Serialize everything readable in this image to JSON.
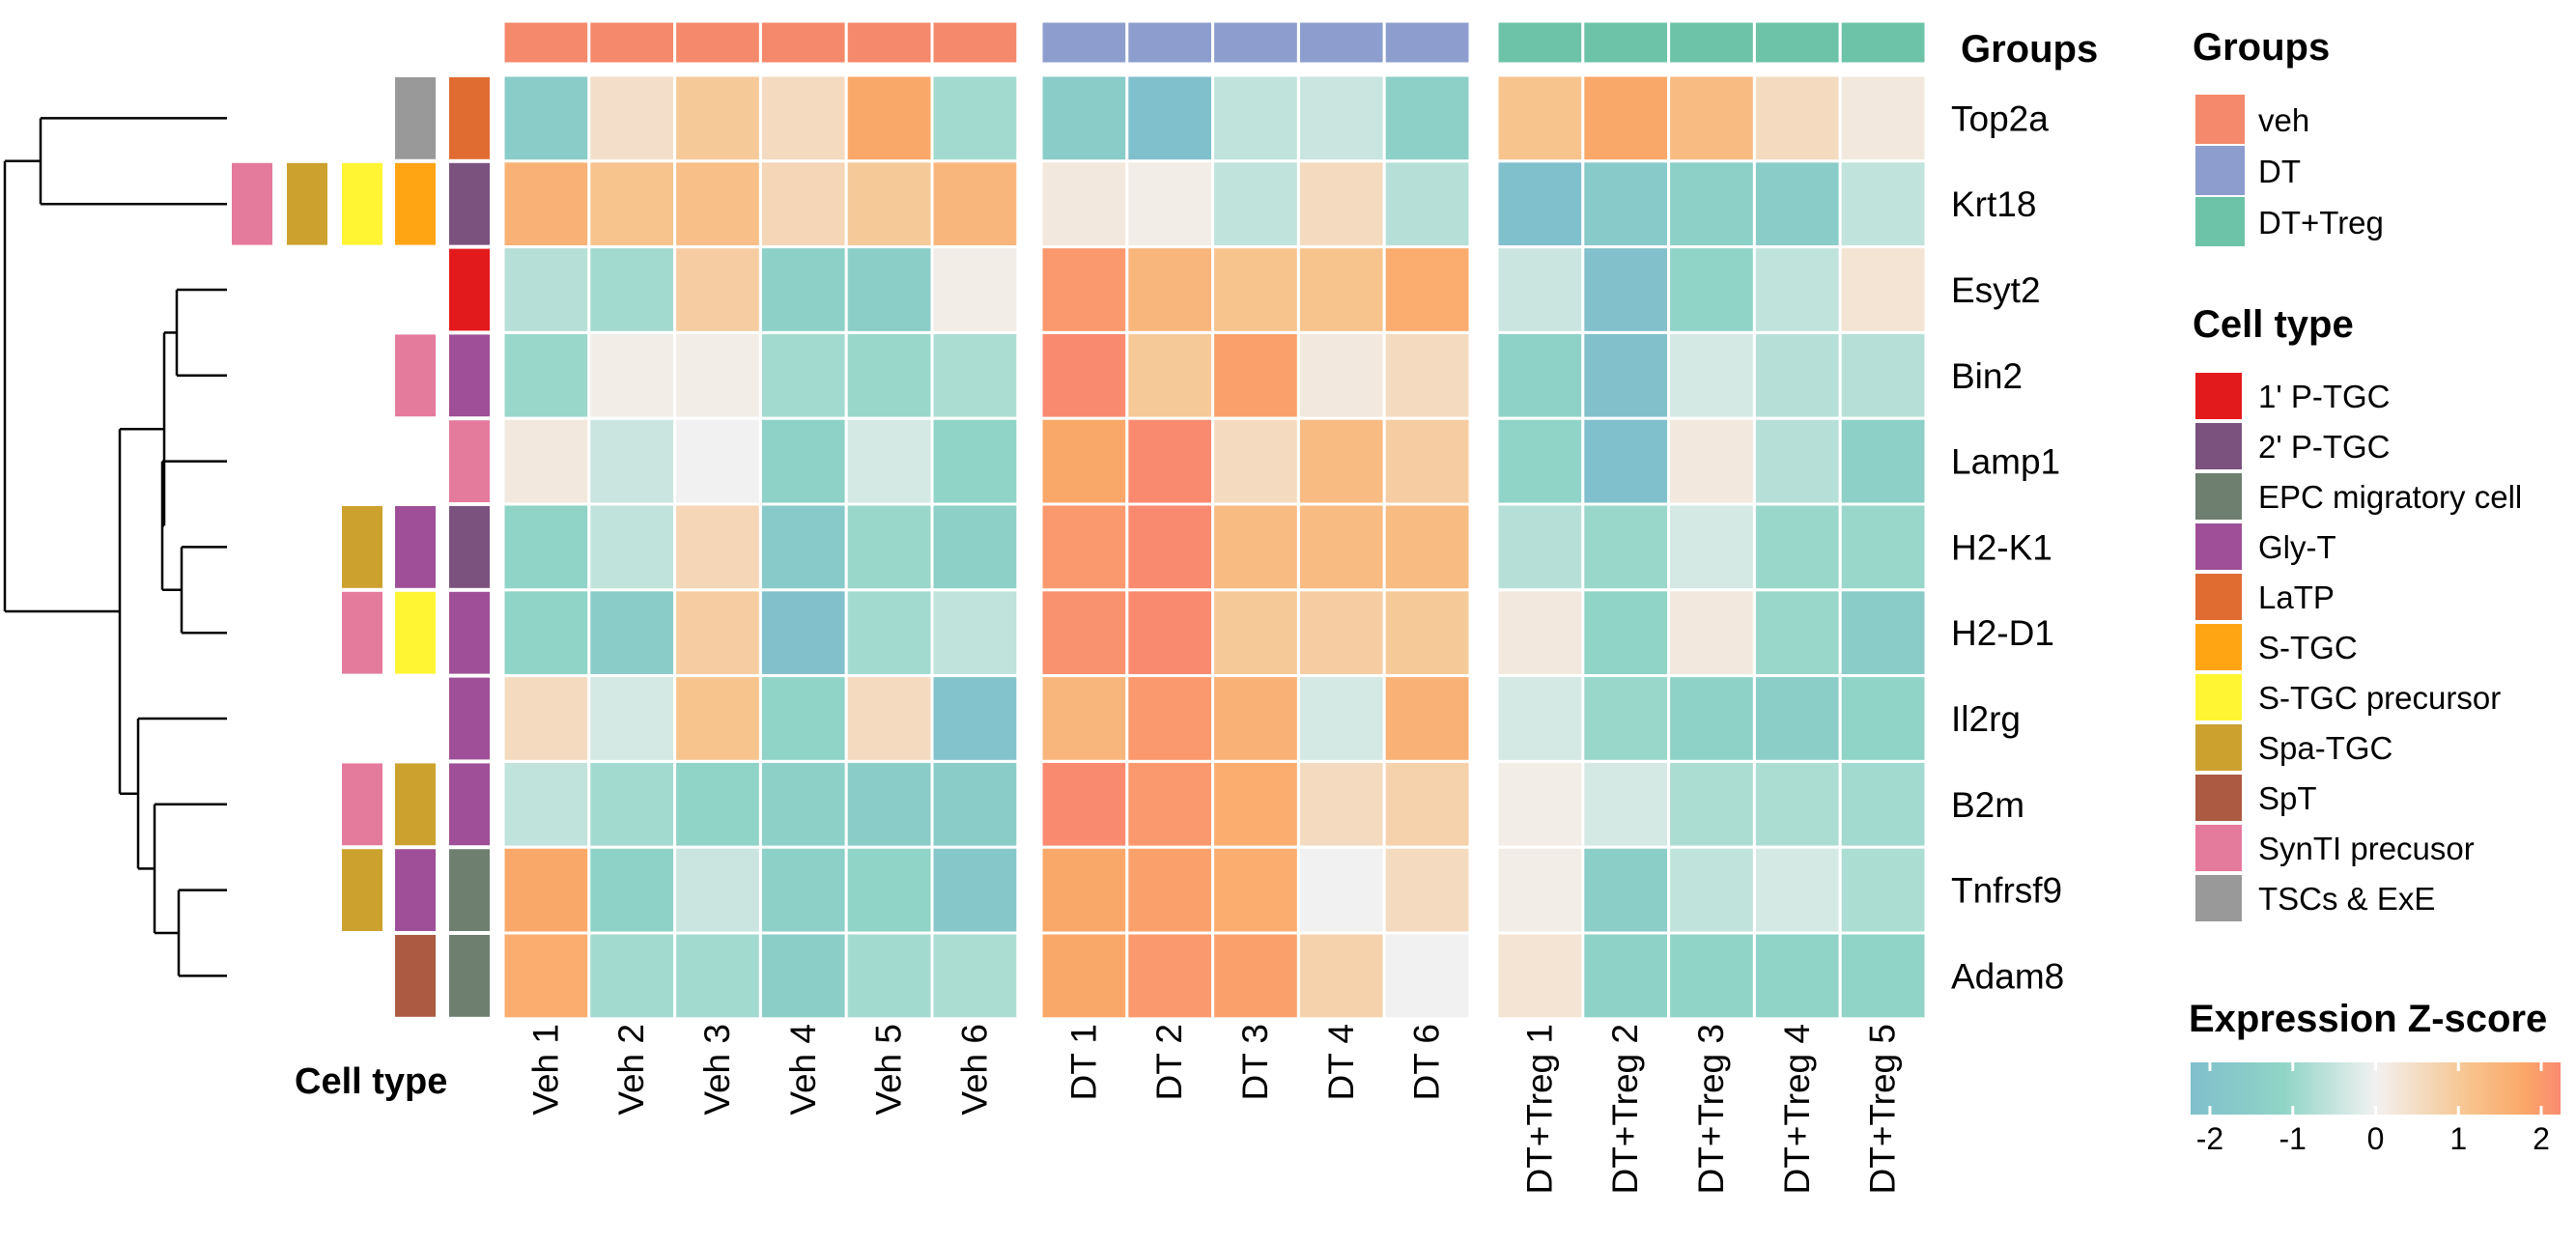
{
  "chart_data": {
    "type": "heatmap",
    "genes": [
      "Top2a",
      "Krt18",
      "Esyt2",
      "Bin2",
      "Lamp1",
      "H2-K1",
      "H2-D1",
      "Il2rg",
      "B2m",
      "Tnfrsf9",
      "Adam8"
    ],
    "groups": [
      {
        "name": "veh",
        "color": "#F4896B",
        "columns": [
          "Veh 1",
          "Veh 2",
          "Veh 3",
          "Veh 4",
          "Veh 5",
          "Veh 6"
        ]
      },
      {
        "name": "DT",
        "color": "#8D9ECE",
        "columns": [
          "DT 1",
          "DT 2",
          "DT 3",
          "DT 4",
          "DT 6"
        ]
      },
      {
        "name": "DT+Treg",
        "color": "#6CC3A7",
        "columns": [
          "DT+Treg 1",
          "DT+Treg 2",
          "DT+Treg 3",
          "DT+Treg 4",
          "DT+Treg 5"
        ]
      }
    ],
    "values": [
      [
        -1.4,
        0.4,
        0.9,
        0.5,
        1.6,
        -0.8,
        -1.4,
        -2.0,
        -0.5,
        -0.4,
        -1.2,
        1.0,
        1.6,
        1.2,
        0.5,
        0.2
      ],
      [
        1.4,
        1.0,
        1.1,
        0.6,
        0.9,
        1.3,
        0.2,
        0.1,
        -0.5,
        0.5,
        -0.6,
        -2.0,
        -1.5,
        -1.2,
        -1.4,
        -0.5
      ],
      [
        -0.6,
        -0.8,
        0.8,
        -1.2,
        -1.3,
        0.1,
        1.8,
        1.3,
        1.0,
        1.0,
        1.5,
        -0.4,
        -1.9,
        -1.0,
        -0.5,
        0.3
      ],
      [
        -0.9,
        0.1,
        0.1,
        -0.8,
        -0.9,
        -0.7,
        2.1,
        0.9,
        1.7,
        0.2,
        0.5,
        -1.1,
        -1.9,
        -0.3,
        -0.6,
        -0.6
      ],
      [
        0.2,
        -0.4,
        0.0,
        -1.1,
        -0.3,
        -1.0,
        1.6,
        2.0,
        0.5,
        1.2,
        0.8,
        -1.0,
        -2.0,
        0.2,
        -0.6,
        -1.2
      ],
      [
        -1.0,
        -0.5,
        0.6,
        -1.5,
        -0.9,
        -1.2,
        1.8,
        2.0,
        1.2,
        1.2,
        1.2,
        -0.6,
        -0.9,
        -0.3,
        -0.9,
        -0.9
      ],
      [
        -1.0,
        -1.4,
        0.8,
        -1.9,
        -0.8,
        -0.5,
        1.9,
        2.0,
        0.9,
        0.8,
        0.9,
        0.2,
        -1.0,
        0.2,
        -0.9,
        -1.4
      ],
      [
        0.5,
        -0.3,
        1.0,
        -1.0,
        0.5,
        -1.8,
        1.3,
        1.8,
        1.4,
        -0.3,
        1.4,
        -0.3,
        -0.9,
        -1.1,
        -1.3,
        -1.0
      ],
      [
        -0.5,
        -0.8,
        -1.0,
        -1.2,
        -1.4,
        -1.4,
        2.0,
        1.8,
        1.5,
        0.5,
        0.7,
        0.1,
        -0.3,
        -0.7,
        -0.7,
        -0.8
      ],
      [
        1.6,
        -1.1,
        -0.4,
        -1.2,
        -1.0,
        -1.6,
        1.6,
        1.7,
        1.5,
        0.0,
        0.5,
        0.1,
        -1.3,
        -0.5,
        -0.3,
        -0.7
      ],
      [
        1.5,
        -0.8,
        -0.8,
        -1.3,
        -0.8,
        -0.7,
        1.6,
        1.8,
        1.7,
        0.7,
        0.0,
        0.3,
        -1.1,
        -1.0,
        -1.0,
        -1.0
      ]
    ],
    "row_annotations": [
      [
        null,
        null,
        null,
        "TSCs & ExE",
        "LaTP"
      ],
      [
        "SynTI precusor",
        "Spa-TGC",
        "S-TGC precursor",
        "S-TGC",
        "2' P-TGC"
      ],
      [
        null,
        null,
        null,
        null,
        "1' P-TGC"
      ],
      [
        null,
        null,
        null,
        "SynTI precusor",
        "Gly-T"
      ],
      [
        null,
        null,
        null,
        null,
        "SynTI precusor"
      ],
      [
        null,
        null,
        "Spa-TGC",
        "Gly-T",
        "2' P-TGC"
      ],
      [
        null,
        null,
        "SynTI precusor",
        "S-TGC precursor",
        "Gly-T"
      ],
      [
        null,
        null,
        null,
        null,
        "Gly-T"
      ],
      [
        null,
        null,
        "SynTI precusor",
        "Spa-TGC",
        "Gly-T"
      ],
      [
        null,
        null,
        "Spa-TGC",
        "Gly-T",
        "EPC migratory cell"
      ],
      [
        null,
        null,
        null,
        "SpT",
        "EPC migratory cell"
      ]
    ],
    "cell_types": [
      {
        "name": "1' P-TGC",
        "color": "#E31A1C"
      },
      {
        "name": "2' P-TGC",
        "color": "#7B527D"
      },
      {
        "name": "EPC migratory cell",
        "color": "#6E7E6F"
      },
      {
        "name": "Gly-T",
        "color": "#9E4F97"
      },
      {
        "name": "LaTP",
        "color": "#E06C32"
      },
      {
        "name": "S-TGC",
        "color": "#FFA514"
      },
      {
        "name": "S-TGC precursor",
        "color": "#FFF533"
      },
      {
        "name": "Spa-TGC",
        "color": "#CCA12E"
      },
      {
        "name": "SpT",
        "color": "#AD5A43"
      },
      {
        "name": "SynTI precusor",
        "color": "#E47A9C"
      },
      {
        "name": "TSCs & ExE",
        "color": "#999999"
      }
    ],
    "color_scale": {
      "min": -2,
      "max": 2,
      "stops": [
        {
          "v": -2,
          "color": "#80BFCC"
        },
        {
          "v": -1,
          "color": "#8FD4C6"
        },
        {
          "v": 0,
          "color": "#F1F1F1"
        },
        {
          "v": 1,
          "color": "#F7C48E"
        },
        {
          "v": 1.6,
          "color": "#FAA869"
        },
        {
          "v": 2,
          "color": "#F98A70"
        }
      ],
      "ticks": [
        -2,
        -1,
        0,
        1,
        2
      ]
    },
    "legend_titles": {
      "groups": "Groups",
      "cell_type": "Cell type",
      "expression": "Expression Z-score"
    },
    "row_annotation_label": "Cell type",
    "top_annotation_label": "Groups"
  }
}
